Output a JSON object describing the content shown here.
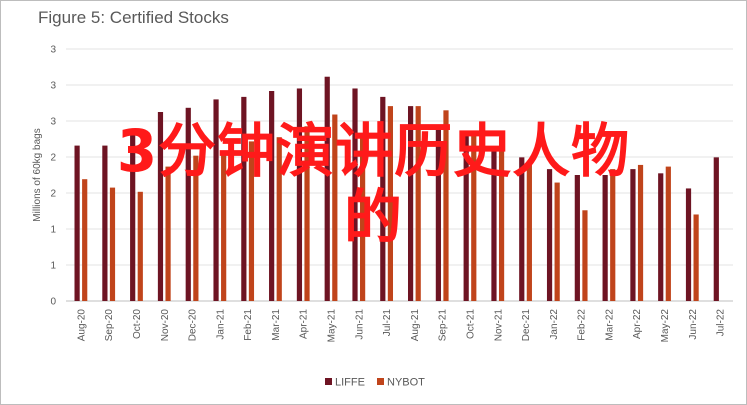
{
  "chart_data": {
    "type": "bar",
    "title": "Figure 5: Certified Stocks",
    "ylabel": "Millions of 60kg bags",
    "ylim": [
      0,
      3
    ],
    "ytick_labels": [
      "0",
      "1",
      "1",
      "2",
      "2",
      "3",
      "3",
      "3"
    ],
    "categories": [
      "Aug-20",
      "Sep-20",
      "Oct-20",
      "Nov-20",
      "Dec-20",
      "Jan-21",
      "Feb-21",
      "Mar-21",
      "Apr-21",
      "May-21",
      "Jun-21",
      "Jul-21",
      "Aug-21",
      "Sep-21",
      "Oct-21",
      "Nov-21",
      "Dec-21",
      "Jan-22",
      "Feb-22",
      "Mar-22",
      "Apr-22",
      "May-22",
      "Jun-22",
      "Jul-22"
    ],
    "series": [
      {
        "name": "LIFFE",
        "color": "#6e1423",
        "values": [
          1.85,
          1.85,
          2.05,
          2.25,
          2.3,
          2.4,
          2.43,
          2.5,
          2.53,
          2.67,
          2.53,
          2.43,
          2.32,
          2.1,
          1.98,
          1.84,
          1.71,
          1.57,
          1.5,
          1.5,
          1.57,
          1.52,
          1.34,
          1.71
        ]
      },
      {
        "name": "NYBOT",
        "color": "#c0441b",
        "values": [
          1.45,
          1.35,
          1.3,
          1.6,
          1.73,
          1.75,
          1.9,
          1.95,
          2.08,
          2.22,
          1.98,
          2.32,
          2.32,
          2.27,
          2.01,
          1.95,
          1.67,
          1.41,
          1.08,
          1.57,
          1.62,
          1.6,
          1.03,
          0
        ]
      }
    ],
    "legend_position": "bottom",
    "grid": true
  },
  "overlay": {
    "line1": "3分钟演讲历史人物",
    "line2": "的"
  }
}
